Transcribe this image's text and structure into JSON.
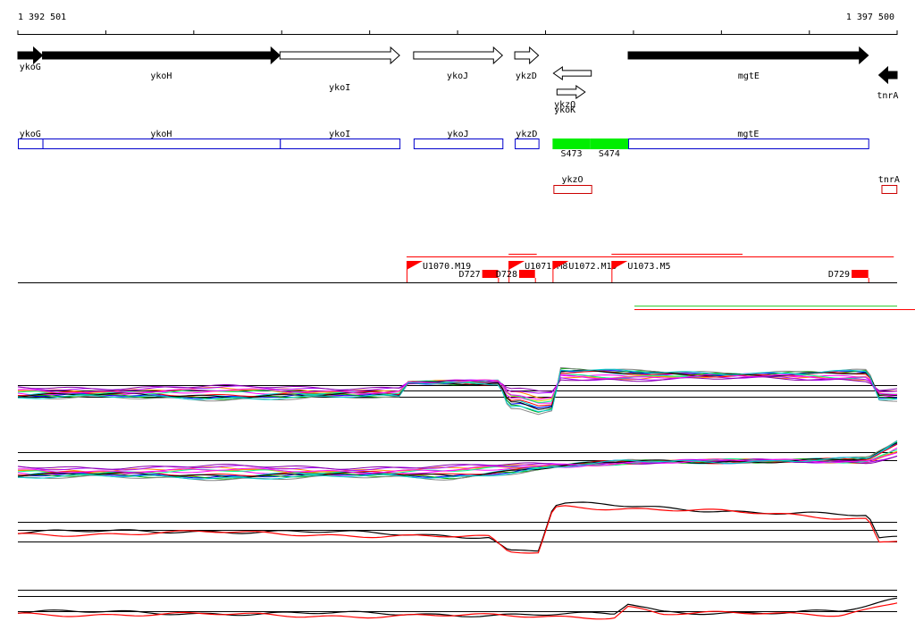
{
  "coords": {
    "start": "1 392 501",
    "end": "1 397 500"
  },
  "colors": {
    "gene_filled": "#000000",
    "gene_outline": "#000000",
    "cds_box": "#0000cc",
    "rna_box": "#cc0000",
    "highlight": "#00ee00",
    "promoter": "#ff0000",
    "axis": "#000000",
    "green_line": "#33cc33",
    "red_line": "#ff0000",
    "palette": [
      "#ff00ff",
      "#00cccc",
      "#cccc00",
      "#0000ff",
      "#ff8800",
      "#00aa00",
      "#aa00ff",
      "#ff0000",
      "#00ff88",
      "#888888",
      "#8800aa",
      "#000000"
    ]
  },
  "genes": [
    {
      "name": "ykoG",
      "strand": "+",
      "filled": true,
      "start": 1392501,
      "end": 1392641
    },
    {
      "name": "ykoH",
      "strand": "+",
      "filled": true,
      "start": 1392641,
      "end": 1393991
    },
    {
      "name": "ykoI",
      "strand": "+",
      "filled": false,
      "start": 1393991,
      "end": 1394671
    },
    {
      "name": "ykoJ",
      "strand": "+",
      "filled": false,
      "start": 1394751,
      "end": 1395256
    },
    {
      "name": "ykzD",
      "strand": "+",
      "filled": false,
      "start": 1395326,
      "end": 1395461
    },
    {
      "name": "ykoK_upper",
      "strand": "-",
      "filled": false,
      "start": 1395546,
      "end": 1395761
    },
    {
      "name": "ykoK_lower",
      "strand": "+",
      "filled": false,
      "start": 1395566,
      "end": 1395726
    },
    {
      "name": "mgtE",
      "strand": "+",
      "filled": true,
      "start": 1395971,
      "end": 1397336
    },
    {
      "name": "tnrA",
      "strand": "-",
      "filled": true,
      "start": 1397396,
      "end": 1397500
    }
  ],
  "gene_labels": [
    {
      "text": "ykoG",
      "pos": 1392571,
      "row": 0
    },
    {
      "text": "ykoH",
      "pos": 1393316,
      "row": 1
    },
    {
      "text": "ykoI",
      "pos": 1394331,
      "row": 2
    },
    {
      "text": "ykoJ",
      "pos": 1395001,
      "row": 1
    },
    {
      "text": "ykzD",
      "pos": 1395391,
      "row": 1
    },
    {
      "text": "ykzO",
      "pos": 1395611,
      "row": 3
    },
    {
      "text": "ykoK",
      "pos": 1395611,
      "row": 4
    },
    {
      "text": "mgtE",
      "pos": 1396656,
      "row": 1
    },
    {
      "text": "tnrA",
      "pos": 1397446,
      "row": 5
    }
  ],
  "cds_boxes": [
    {
      "name": "ykoG",
      "start": 1392501,
      "end": 1392641
    },
    {
      "name": "ykoH",
      "start": 1392641,
      "end": 1393991
    },
    {
      "name": "ykoI",
      "start": 1393991,
      "end": 1394671
    },
    {
      "name": "ykoJ",
      "start": 1394751,
      "end": 1395256
    },
    {
      "name": "ykzD",
      "start": 1395326,
      "end": 1395461
    },
    {
      "name": "mgtE",
      "start": 1395971,
      "end": 1397336
    }
  ],
  "highlight_segments": [
    {
      "label": "S473",
      "start": 1395541,
      "end": 1395756
    },
    {
      "label": "S474",
      "start": 1395756,
      "end": 1395971
    }
  ],
  "rna_boxes": [
    {
      "name": "ykzO",
      "start": 1395546,
      "end": 1395761
    },
    {
      "name": "tnrA",
      "start": 1397411,
      "end": 1397496
    }
  ],
  "promoters": [
    {
      "name": "U1070.M19",
      "pos": 1394711
    },
    {
      "name": "U1071.M8",
      "pos": 1395291
    },
    {
      "name": "U1072.M19",
      "pos": 1395541
    },
    {
      "name": "U1073.M5",
      "pos": 1395876
    }
  ],
  "terminators": [
    {
      "name": "D727",
      "start": 1395141,
      "end": 1395231
    },
    {
      "name": "D728",
      "start": 1395351,
      "end": 1395441
    },
    {
      "name": "D729",
      "start": 1397241,
      "end": 1397336
    }
  ],
  "transcripts": [
    {
      "start": 1394711,
      "end": 1397481
    },
    {
      "start": 1395291,
      "end": 1395451
    },
    {
      "start": 1395876,
      "end": 1396621
    }
  ],
  "profiles": [
    {
      "panel": "many",
      "knots": [
        [
          1392501,
          0
        ],
        [
          1393581,
          0
        ],
        [
          1394671,
          0
        ],
        [
          1394721,
          -12
        ],
        [
          1395241,
          -12
        ],
        [
          1395291,
          6
        ],
        [
          1395351,
          6
        ],
        [
          1395461,
          12
        ],
        [
          1395546,
          10
        ],
        [
          1395581,
          -22
        ],
        [
          1395971,
          -20
        ],
        [
          1397336,
          -20
        ],
        [
          1397396,
          2
        ],
        [
          1397500,
          2
        ]
      ],
      "amps": [
        0,
        3,
        -3,
        5,
        -6,
        7,
        -9,
        2,
        -2,
        10,
        -11,
        4,
        -4,
        8
      ]
    },
    {
      "panel": "many2",
      "knots": [
        [
          1392501,
          0
        ],
        [
          1394971,
          0
        ],
        [
          1395291,
          -4
        ],
        [
          1395581,
          -8
        ],
        [
          1395971,
          -12
        ],
        [
          1397336,
          -14
        ],
        [
          1397500,
          -28
        ]
      ],
      "amps": [
        0,
        3,
        -3,
        5,
        -6,
        7,
        -9,
        2,
        -2,
        10,
        -11,
        4,
        -4,
        8
      ]
    },
    {
      "panel": "pair1",
      "knots": [
        [
          1392501,
          0
        ],
        [
          1393581,
          -2
        ],
        [
          1394251,
          0
        ],
        [
          1395181,
          4
        ],
        [
          1395291,
          20
        ],
        [
          1395461,
          20
        ],
        [
          1395546,
          -30
        ],
        [
          1395611,
          -32
        ],
        [
          1396621,
          -24
        ],
        [
          1397336,
          -18
        ],
        [
          1397396,
          8
        ],
        [
          1397500,
          6
        ]
      ]
    },
    {
      "panel": "pair2",
      "knots": [
        [
          1392501,
          0
        ],
        [
          1393581,
          1
        ],
        [
          1394431,
          2
        ],
        [
          1395891,
          3
        ],
        [
          1395971,
          -9
        ],
        [
          1396161,
          0
        ],
        [
          1397176,
          0
        ],
        [
          1397336,
          -6
        ],
        [
          1397500,
          -14
        ]
      ]
    }
  ]
}
